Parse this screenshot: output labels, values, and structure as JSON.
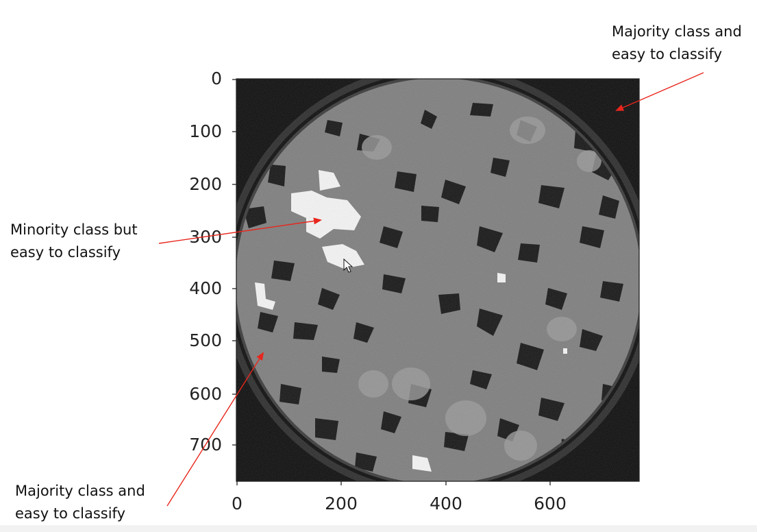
{
  "annotations": {
    "top_right": [
      "Majority class and",
      "easy to classify"
    ],
    "left": [
      "Minority class but",
      "easy to classify"
    ],
    "bottom_left": [
      "Majority class and",
      "easy to classify"
    ]
  },
  "axes": {
    "y_ticks": [
      "0",
      "100",
      "200",
      "300",
      "400",
      "500",
      "600",
      "700"
    ],
    "x_ticks": [
      "0",
      "200",
      "400",
      "600"
    ]
  },
  "colors": {
    "arrow": "#e8261c",
    "rock": "#7e7e7e",
    "pore": "#151515",
    "mineral": "#f4f4f4",
    "background_ring": "#0c0c0c"
  },
  "icons": {
    "cursor": "mouse-pointer-icon"
  }
}
